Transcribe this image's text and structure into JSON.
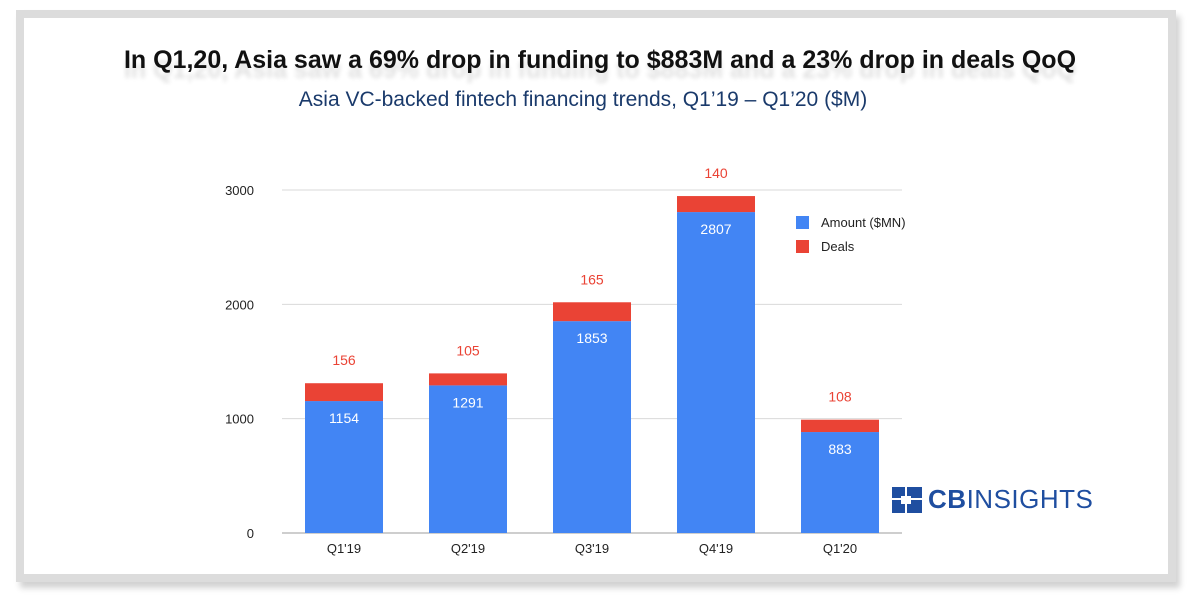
{
  "title": "In Q1,20, Asia saw a 69% drop in funding to $883M and a 23% drop in deals QoQ",
  "subtitle": "Asia VC-backed fintech financing trends, Q1’19 – Q1’20 ($M)",
  "brand": {
    "bold": "CB",
    "rest": "INSIGHTS",
    "color": "#1f4ea0"
  },
  "colors": {
    "amount": "#4285f4",
    "deals": "#ea4335",
    "grid": "#d9d9d9",
    "axis_text": "#222222"
  },
  "chart_data": {
    "type": "bar",
    "stacked": true,
    "categories": [
      "Q1'19",
      "Q2'19",
      "Q3'19",
      "Q4'19",
      "Q1'20"
    ],
    "series": [
      {
        "name": "Amount ($MN)",
        "values": [
          1154,
          1291,
          1853,
          2807,
          883
        ]
      },
      {
        "name": "Deals",
        "values": [
          156,
          105,
          165,
          140,
          108
        ]
      }
    ],
    "ylim": [
      0,
      3000
    ],
    "yticks": [
      0,
      1000,
      2000,
      3000
    ],
    "grid": true,
    "legend_position": "top-right"
  }
}
